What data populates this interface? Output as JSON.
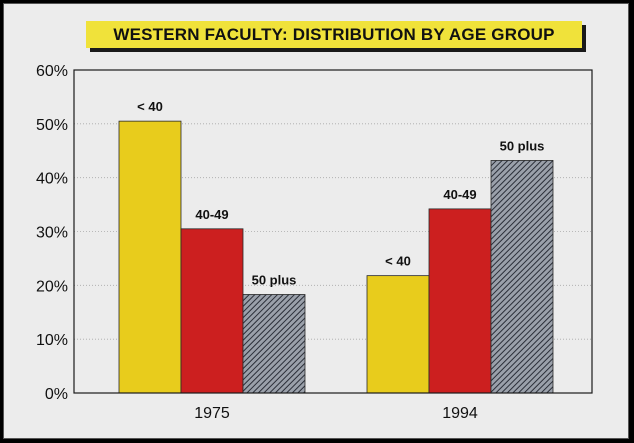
{
  "chart_data": {
    "type": "bar",
    "title": "WESTERN FACULTY:  DISTRIBUTION BY AGE GROUP",
    "xlabel": "",
    "ylabel": "",
    "categories": [
      "1975",
      "1994"
    ],
    "series": [
      {
        "name": "< 40",
        "values": [
          50.5,
          21.8
        ],
        "color": "#e8cc1c",
        "labels": [
          "< 40",
          "< 40"
        ]
      },
      {
        "name": "40-49",
        "values": [
          30.5,
          34.2
        ],
        "color": "#cc1f1f",
        "labels": [
          "40-49",
          "40-49"
        ]
      },
      {
        "name": "50 plus",
        "values": [
          18.3,
          43.2
        ],
        "color": "#5a5f6e",
        "labels": [
          "50 plus",
          "50 plus"
        ]
      }
    ],
    "ylim": [
      0,
      60
    ],
    "yticks": [
      "0%",
      "10%",
      "20%",
      "30%",
      "40%",
      "50%",
      "60%"
    ],
    "grid": true,
    "legend": "none"
  }
}
